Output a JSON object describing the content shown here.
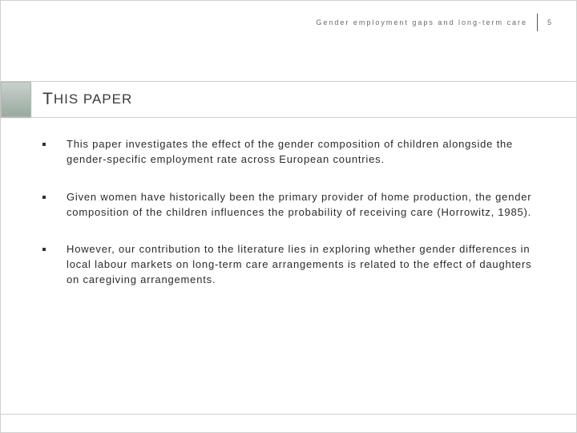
{
  "header": {
    "running_title": "Gender employment gaps and long-term care",
    "page_number": "5"
  },
  "section": {
    "title_first": "T",
    "title_rest": "HIS PAPER"
  },
  "bullets": [
    "This paper investigates the effect of the gender composition of children alongside the gender-specific employment rate across European countries.",
    "Given women have historically been the primary provider of home production, the gender composition of the children influences the probability of receiving care (Horrowitz, 1985).",
    "However, our contribution to the literature lies in exploring whether gender differences in local labour markets on long-term care arrangements is related to the effect of daughters on caregiving arrangements."
  ],
  "colors": {
    "text": "#2a2a2a",
    "muted": "#6a6a6a",
    "border": "#cfcfcf",
    "accent_top": "#c8d0cb",
    "accent_bottom": "#9aaaa0"
  }
}
